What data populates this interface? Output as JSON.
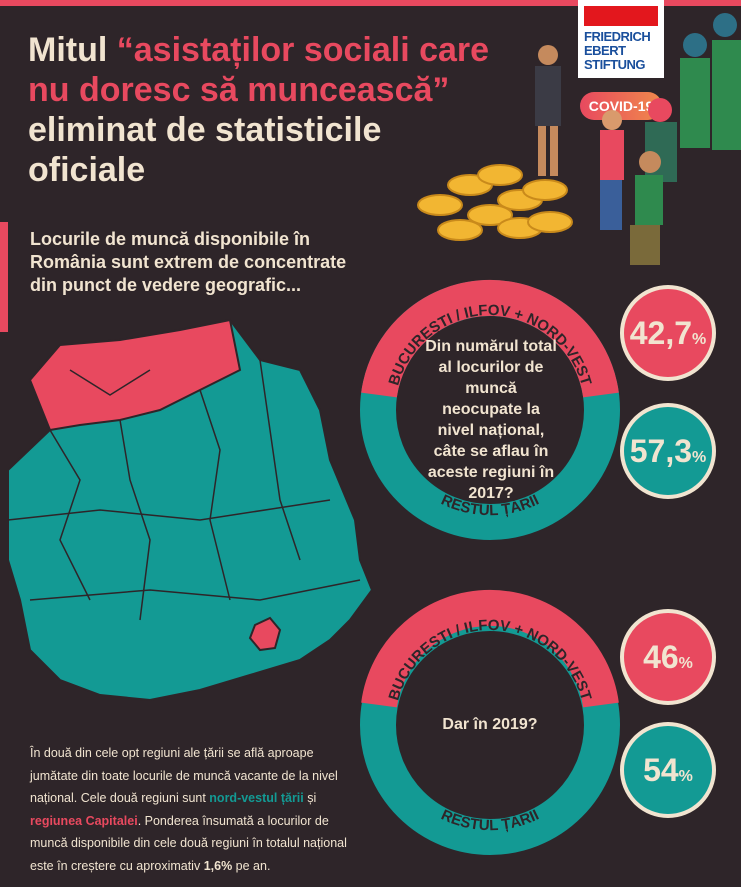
{
  "title": {
    "part1": "Mitul ",
    "part2": "“asistaților sociali care nu doresc să muncească”",
    "part3": " eliminat de statisticile oficiale"
  },
  "subtitle": "Locurile de muncă disponibile în România sunt extrem de concentrate din punct de vedere geografic...",
  "logo": {
    "line1": "FRIEDRICH",
    "line2": "EBERT",
    "line3": "STIFTUNG"
  },
  "badge": "COVID-19",
  "ring_2017": {
    "top_label": "BUCUREȘTI / ILFOV + NORD-VEST",
    "bottom_label": "RESTUL ȚĂRII",
    "question": "Din numărul total al locurilor de muncă neocupate la nivel național, câte se aflau în aceste regiuni în 2017?",
    "value_regions": "42,7",
    "value_rest": "57,3",
    "percent_sign": "%"
  },
  "ring_2019": {
    "top_label": "BUCUREȘTI / ILFOV + NORD-VEST",
    "bottom_label": "RESTUL ȚĂRII",
    "question": "Dar în 2019?",
    "value_regions": "46",
    "value_rest": "54",
    "percent_sign": "%"
  },
  "paragraph": {
    "p1": "În două din cele opt regiuni ale țării se află aproape jumătate din toate locurile de muncă vacante de la nivel național. Cele două regiuni sunt ",
    "hl1": "nord-vestul țării",
    "p2": " și ",
    "hl2": "regiunea Capitalei",
    "p3": ". Ponderea însumată a locurilor de muncă disponibile din cele două regiuni în totalul național este în creștere cu aproximativ ",
    "hl3": "1,6%",
    "p4": " pe an."
  },
  "colors": {
    "red": "#e8495f",
    "teal": "#139a94",
    "cream": "#f1e4d0",
    "bg": "#2e2529"
  }
}
